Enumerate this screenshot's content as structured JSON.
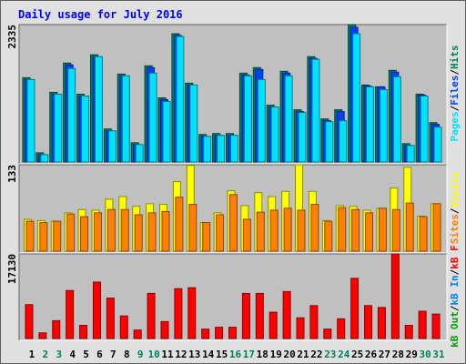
{
  "chart_data": [
    {
      "type": "bar",
      "title": "Daily usage for July 2016",
      "ylim": [
        0,
        2335
      ],
      "yticks": [
        2335
      ],
      "legend_separator": "/",
      "series": [
        {
          "name": "Hits",
          "color": "#00805c",
          "values": [
            1432,
            156,
            1183,
            1681,
            1152,
            1821,
            560,
            1494,
            327,
            1634,
            1090,
            2179,
            1339,
            467,
            483,
            483,
            1510,
            1603,
            965,
            1541,
            887,
            1790,
            732,
            887,
            2335,
            1308,
            1277,
            1557,
            311,
            1152,
            669
          ]
        },
        {
          "name": "Files",
          "color": "#0040ff",
          "values": [
            1401,
            125,
            1152,
            1650,
            1121,
            1790,
            529,
            1464,
            296,
            1603,
            1059,
            2149,
            1308,
            436,
            452,
            452,
            1479,
            1573,
            934,
            1510,
            856,
            1759,
            701,
            856,
            2289,
            1292,
            1277,
            1526,
            280,
            1137,
            638
          ]
        },
        {
          "name": "Pages",
          "color": "#00e0ff",
          "values": [
            1401,
            125,
            1152,
            1588,
            1121,
            1790,
            529,
            1464,
            296,
            1510,
            1028,
            2133,
            1308,
            436,
            452,
            452,
            1464,
            1401,
            934,
            1464,
            841,
            1744,
            685,
            701,
            2180,
            1277,
            1230,
            1448,
            280,
            1121,
            592
          ]
        }
      ]
    },
    {
      "type": "bar",
      "ylim": [
        0,
        133
      ],
      "yticks": [
        133
      ],
      "legend_separator": "/",
      "series": [
        {
          "name": "Visits",
          "color": "#ffff00",
          "values": [
            49,
            47,
            46,
            59,
            64,
            63,
            80,
            84,
            69,
            73,
            72,
            107,
            132,
            44,
            59,
            93,
            70,
            90,
            84,
            92,
            133,
            92,
            47,
            70,
            69,
            63,
            66,
            97,
            129,
            54,
            73
          ]
        },
        {
          "name": "Sites",
          "color": "#ff8000",
          "values": [
            46,
            44,
            46,
            57,
            53,
            59,
            64,
            64,
            56,
            59,
            61,
            83,
            72,
            44,
            56,
            87,
            49,
            60,
            63,
            66,
            63,
            72,
            46,
            67,
            64,
            59,
            66,
            64,
            74,
            53,
            73
          ]
        }
      ]
    },
    {
      "type": "bar",
      "ylim": [
        0,
        17130
      ],
      "yticks": [
        17130
      ],
      "legend_separator": "/",
      "categories": [
        "1",
        "2",
        "3",
        "4",
        "5",
        "6",
        "7",
        "8",
        "9",
        "10",
        "11",
        "12",
        "13",
        "14",
        "15",
        "16",
        "17",
        "18",
        "19",
        "20",
        "21",
        "22",
        "23",
        "24",
        "25",
        "26",
        "27",
        "28",
        "29",
        "30",
        "31"
      ],
      "category_colors": [
        "#000000",
        "#00805c",
        "#00805c",
        "#000000",
        "#000000",
        "#000000",
        "#000000",
        "#000000",
        "#00805c",
        "#00805c",
        "#000000",
        "#000000",
        "#000000",
        "#000000",
        "#000000",
        "#00805c",
        "#00805c",
        "#000000",
        "#000000",
        "#000000",
        "#000000",
        "#000000",
        "#00805c",
        "#00805c",
        "#000000",
        "#000000",
        "#000000",
        "#000000",
        "#000000",
        "#00805c",
        "#00805c"
      ],
      "series": [
        {
          "name": "kB F",
          "color": "#ff0000",
          "values": [
            6851,
            1142,
            3616,
            9706,
            2664,
            11419,
            8183,
            4568,
            1713,
            9135,
            3426,
            10087,
            10277,
            1903,
            2284,
            2284,
            9135,
            9135,
            5329,
            9515,
            4187,
            6661,
            1903,
            3997,
            12180,
            6661,
            6280,
            17130,
            2664,
            5519,
            4948
          ]
        },
        {
          "name": "kB In",
          "color": "#0080ff"
        },
        {
          "name": "kB Out",
          "color": "#00a000"
        }
      ]
    }
  ]
}
